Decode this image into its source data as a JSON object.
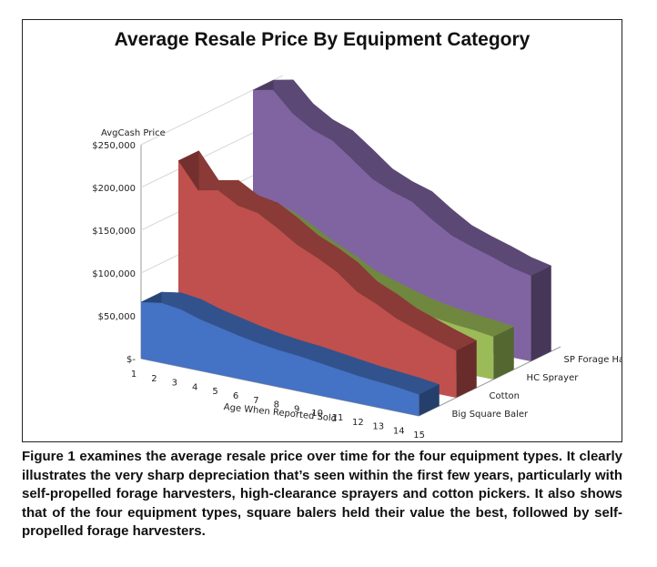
{
  "chart_data": {
    "type": "area",
    "title": "Average Resale Price By Equipment Category",
    "ylabel": "AvgCash Price",
    "xlabel": "Age When Reported Sold",
    "x": [
      1,
      2,
      3,
      4,
      5,
      6,
      7,
      8,
      9,
      10,
      11,
      12,
      13,
      14,
      15
    ],
    "ylim": [
      0,
      250000
    ],
    "y_ticks": [
      "$-",
      "$50,000",
      "$100,000",
      "$150,000",
      "$200,000",
      "$250,000"
    ],
    "series": [
      {
        "name": "Big Square Baler",
        "color": "#4472c4",
        "values": [
          66000,
          70000,
          67000,
          60000,
          55000,
          50000,
          46000,
          43000,
          41000,
          38000,
          35000,
          32000,
          30000,
          28000,
          25000
        ]
      },
      {
        "name": "Cotton",
        "color": "#c0504d",
        "values": [
          210000,
          180000,
          185000,
          172000,
          168000,
          155000,
          140000,
          130000,
          118000,
          100000,
          90000,
          78000,
          70000,
          62000,
          55000
        ]
      },
      {
        "name": "HC Sprayer",
        "color": "#9bbb59",
        "values": [
          150000,
          135000,
          138000,
          130000,
          118000,
          105000,
          95000,
          82000,
          75000,
          68000,
          62000,
          58000,
          55000,
          53000,
          50000
        ]
      },
      {
        "name": "SP Forage Harv",
        "color": "#8064a2",
        "values": [
          250000,
          255000,
          232000,
          218000,
          210000,
          193000,
          175000,
          165000,
          158000,
          142000,
          128000,
          120000,
          113000,
          105000,
          100000
        ]
      }
    ]
  },
  "caption": "Figure 1 examines the average resale price over time for the four equipment types. It clearly illustrates the very sharp depreciation that’s seen within the first few years, particularly with self-propelled forage harvesters, high-clearance sprayers and cotton pickers. It also shows that of the four equipment types, square balers held their value the best, followed by self-propelled forage harvesters."
}
